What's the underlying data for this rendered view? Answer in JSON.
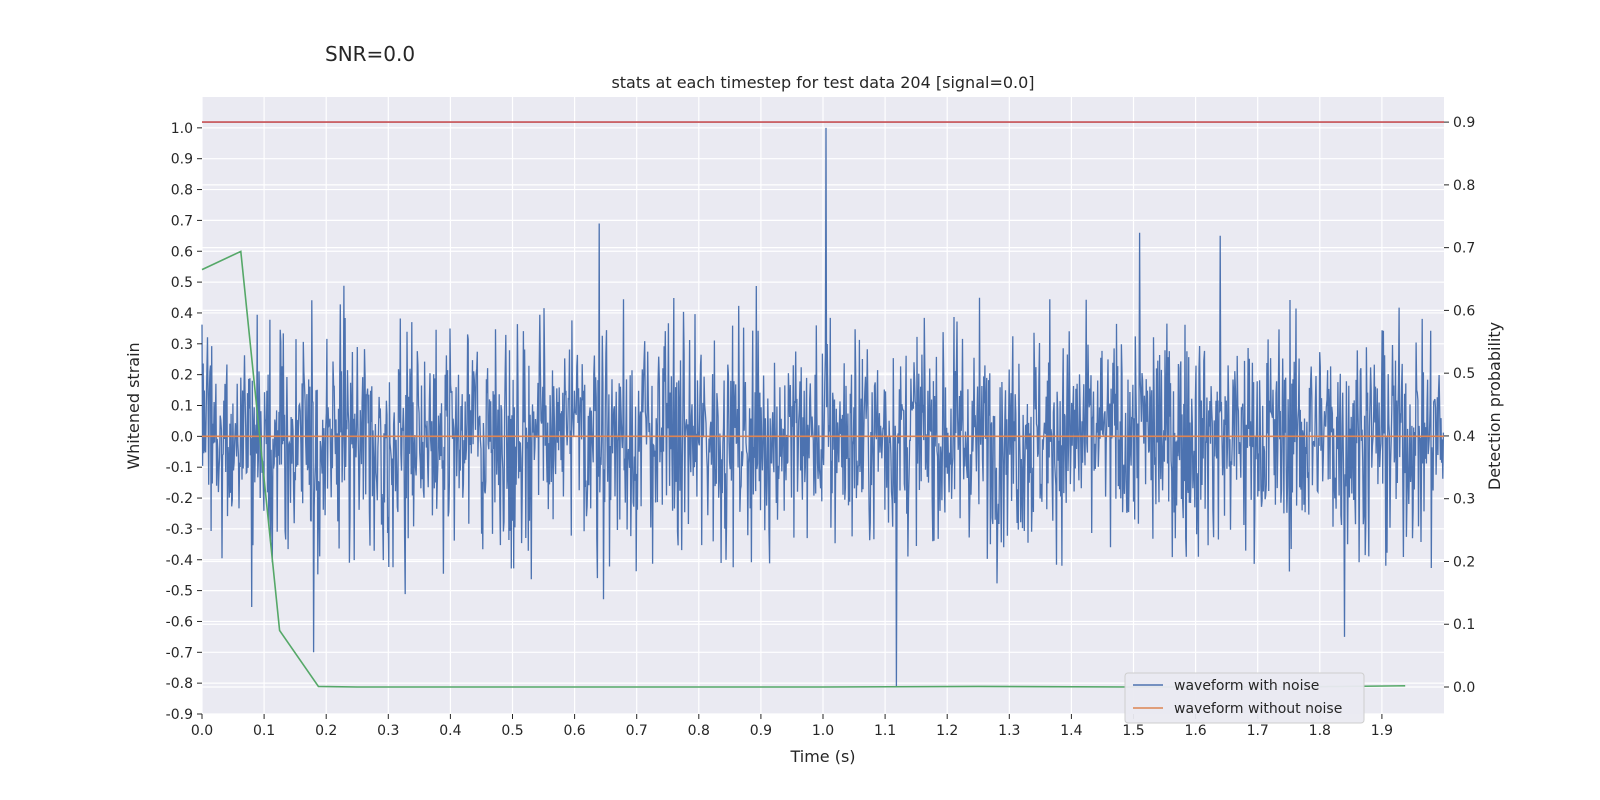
{
  "suptitle": "SNR=0.0",
  "chart_data": {
    "type": "line",
    "title": "stats at each timestep for test data 204 [signal=0.0]",
    "xlabel": "Time (s)",
    "ylabel": "Whitened strain",
    "y2label": "Detection probability",
    "xlim": [
      0.0,
      2.0
    ],
    "ylim": [
      -0.9,
      1.1
    ],
    "y2lim": [
      -0.043,
      0.94
    ],
    "grid": true,
    "legend_position": "lower-right",
    "x_ticks": [
      "0.0",
      "0.1",
      "0.2",
      "0.3",
      "0.4",
      "0.5",
      "0.6",
      "0.7",
      "0.8",
      "0.9",
      "1.0",
      "1.1",
      "1.2",
      "1.3",
      "1.4",
      "1.5",
      "1.6",
      "1.7",
      "1.8",
      "1.9"
    ],
    "y_ticks": [
      "1.0",
      "0.9",
      "0.8",
      "0.7",
      "0.6",
      "0.5",
      "0.4",
      "0.3",
      "0.2",
      "0.1",
      "0.0",
      "-0.1",
      "-0.2",
      "-0.3",
      "-0.4",
      "-0.5",
      "-0.6",
      "-0.7",
      "-0.8",
      "-0.9"
    ],
    "y2_ticks": [
      "0.9",
      "0.8",
      "0.7",
      "0.6",
      "0.5",
      "0.4",
      "0.3",
      "0.2",
      "0.1",
      "0.0"
    ],
    "threshold_line": {
      "axis": "right",
      "value": 0.9,
      "color": "#c44e52"
    },
    "series": [
      {
        "name": "waveform with noise",
        "axis": "left",
        "color": "#4c72b0",
        "generated": "dense noise, std ~0.2, t from 0.0 to 2.0",
        "spikes": [
          {
            "x": 1.005,
            "y": 1.0
          },
          {
            "x": 1.118,
            "y": -0.81
          },
          {
            "x": 0.64,
            "y": 0.69
          },
          {
            "x": 1.51,
            "y": 0.66
          },
          {
            "x": 1.64,
            "y": 0.65
          },
          {
            "x": 0.18,
            "y": -0.7
          },
          {
            "x": 1.84,
            "y": -0.65
          }
        ]
      },
      {
        "name": "waveform without noise",
        "axis": "left",
        "color": "#dd8452",
        "x": [
          0.0,
          2.0
        ],
        "y": [
          0.0,
          0.0
        ]
      },
      {
        "name": "detection probability",
        "axis": "right",
        "color": "#55a868",
        "x": [
          0.0,
          0.0625,
          0.125,
          0.1875,
          0.25,
          0.5,
          0.75,
          1.0,
          1.25,
          1.5,
          1.75,
          1.9375
        ],
        "y": [
          0.665,
          0.694,
          0.09,
          0.001,
          0.0,
          0.0,
          0.0,
          0.0,
          0.001,
          0.0,
          0.0,
          0.002
        ]
      }
    ]
  }
}
